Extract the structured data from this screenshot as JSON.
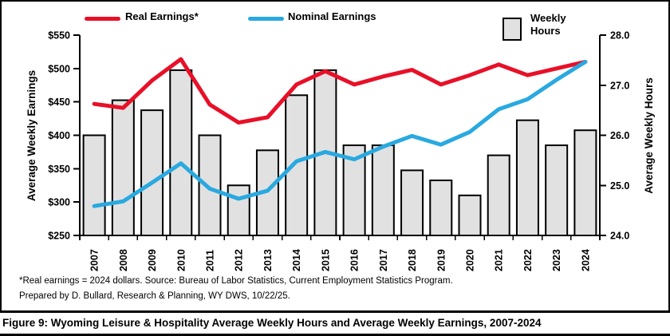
{
  "legend": {
    "real_label": "Real Earnings*",
    "nominal_label": "Nominal Earnings",
    "hours_line1": "Weekly",
    "hours_line2": "Hours"
  },
  "footnote": {
    "line1": "*Real earnings = 2024 dollars. Source: Bureau of Labor Statistics, Current Employment Statistics Program.",
    "line2": "Prepared by D. Bullard, Research & Planning, WY DWS, 10/22/25."
  },
  "caption": "Figure 9: Wyoming Leisure & Hospitality Average Weekly Hours and Average Weekly Earnings, 2007-2024",
  "chart_data": {
    "type": "bar+line combo",
    "grid": "off",
    "legend_position": "top",
    "categories": [
      "2007",
      "2008",
      "2009",
      "2010",
      "2011",
      "2012",
      "2013",
      "2014",
      "2015",
      "2016",
      "2017",
      "2018",
      "2019",
      "2020",
      "2021",
      "2022",
      "2023",
      "2024"
    ],
    "left_axis": {
      "title": "Average Weekly Earnings",
      "min": 250,
      "max": 550,
      "tick_values": [
        550,
        500,
        450,
        400,
        350,
        300,
        250
      ],
      "tick_labels": [
        "$550",
        "$500",
        "$450",
        "$400",
        "$350",
        "$300",
        "$250"
      ]
    },
    "right_axis": {
      "title": "Average Weekly Hours",
      "min": 24,
      "max": 28,
      "tick_values": [
        28,
        27,
        26,
        25,
        24
      ],
      "tick_labels": [
        "28.0",
        "27.0",
        "26.0",
        "25.0",
        "24.0"
      ]
    },
    "series": [
      {
        "name": "Weekly Hours",
        "type": "bar",
        "axis": "right",
        "color": "#E1E1E1",
        "border_color": "#000000",
        "values": [
          26.0,
          26.7,
          26.5,
          27.3,
          26.0,
          25.0,
          25.7,
          26.8,
          27.3,
          25.8,
          25.8,
          25.3,
          25.1,
          24.8,
          25.6,
          26.3,
          25.8,
          26.1
        ]
      },
      {
        "name": "Real Earnings*",
        "type": "line",
        "axis": "left",
        "color": "#E81028",
        "values": [
          447,
          441,
          482,
          514,
          446,
          419,
          427,
          476,
          496,
          476,
          488,
          498,
          476,
          490,
          506,
          490,
          500,
          510
        ]
      },
      {
        "name": "Nominal Earnings",
        "type": "line",
        "axis": "left",
        "color": "#29A9E0",
        "values": [
          294,
          301,
          329,
          358,
          320,
          305,
          317,
          361,
          375,
          364,
          383,
          399,
          386,
          405,
          439,
          454,
          483,
          510
        ]
      }
    ]
  }
}
